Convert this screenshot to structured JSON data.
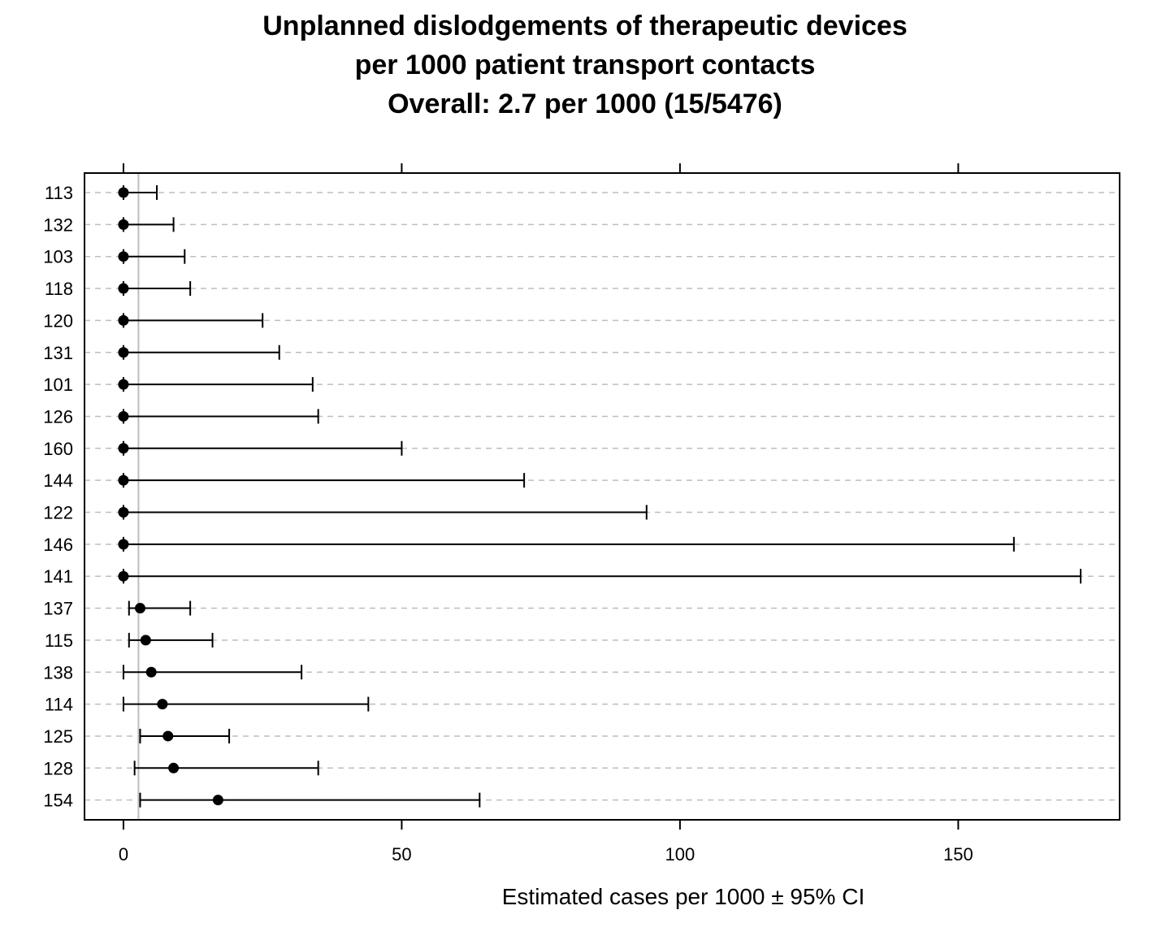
{
  "title": {
    "line1": "Unplanned dislodgements of therapeutic devices",
    "line2": "per 1000 patient transport contacts",
    "line3": "Overall:  2.7 per 1000  (15/5476)"
  },
  "chart_data": {
    "type": "dot-errorbar",
    "overall_reference": 2.7,
    "xlabel": "Estimated cases per 1000 ±  95% CI",
    "xlim": [
      -7,
      179
    ],
    "x_ticks": [
      0,
      50,
      100,
      150
    ],
    "grid": "horizontal dashed",
    "categories": [
      "113",
      "132",
      "103",
      "118",
      "120",
      "131",
      "101",
      "126",
      "160",
      "144",
      "122",
      "146",
      "141",
      "137",
      "115",
      "138",
      "114",
      "125",
      "128",
      "154"
    ],
    "estimate": [
      0,
      0,
      0,
      0,
      0,
      0,
      0,
      0,
      0,
      0,
      0,
      0,
      0,
      3,
      4,
      5,
      7,
      8,
      9,
      17
    ],
    "lower": [
      0,
      0,
      0,
      0,
      0,
      0,
      0,
      0,
      0,
      0,
      0,
      0,
      0,
      1,
      1,
      0,
      0,
      3,
      2,
      3
    ],
    "upper": [
      6,
      9,
      11,
      12,
      25,
      28,
      34,
      35,
      50,
      72,
      94,
      160,
      172,
      12,
      16,
      32,
      44,
      19,
      35,
      64
    ]
  },
  "colors": {
    "points": "#000000",
    "gridline": "#bebebe",
    "reference_line": "#bebebe"
  }
}
